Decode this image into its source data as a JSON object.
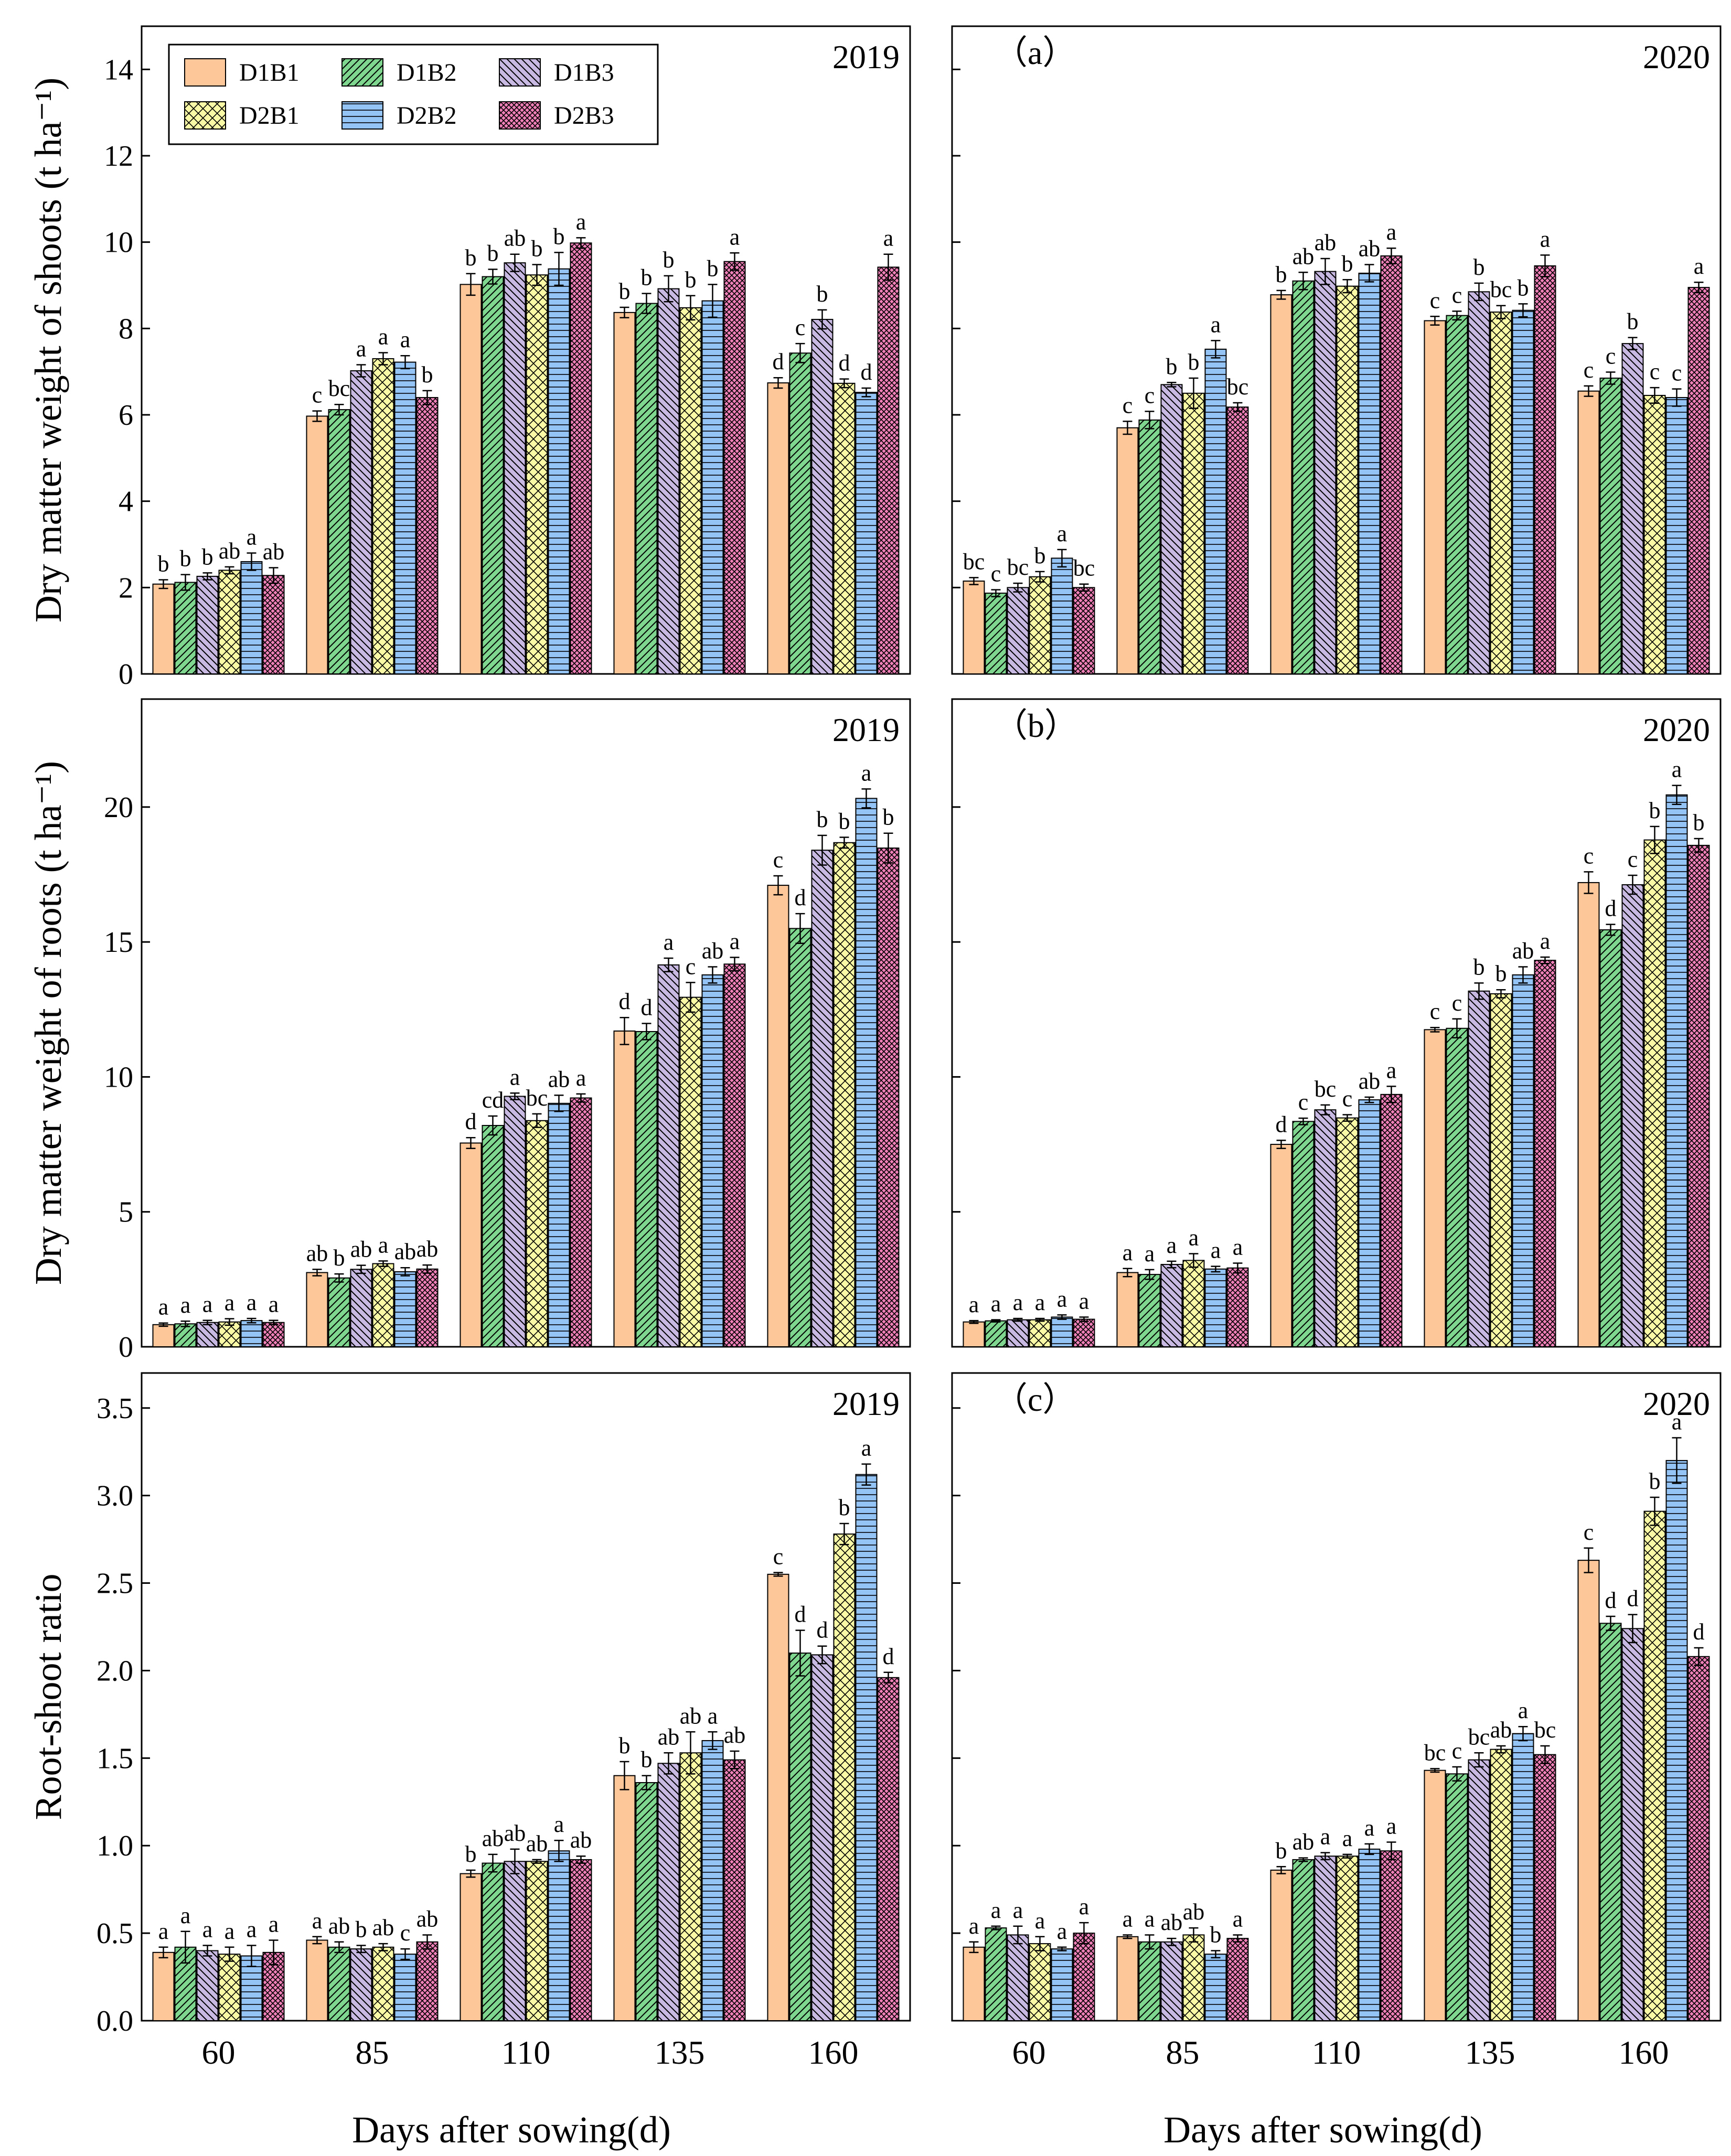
{
  "legend": [
    {
      "label": "D1B1",
      "color": "#FDC79A",
      "pattern": "none"
    },
    {
      "label": "D1B2",
      "color": "#7ED68F",
      "pattern": "diag-right"
    },
    {
      "label": "D1B3",
      "color": "#C8B9E2",
      "pattern": "diag-left"
    },
    {
      "label": "D2B1",
      "color": "#FAFAA6",
      "pattern": "cross"
    },
    {
      "label": "D2B2",
      "color": "#93C4F5",
      "pattern": "horizontal"
    },
    {
      "label": "D2B3",
      "color": "#F080B8",
      "pattern": "dense-cross"
    }
  ],
  "x_axis_title": "Days after sowing(d)",
  "chart_data": [
    {
      "type": "bar",
      "row": 0,
      "col": 0,
      "year": "2019",
      "panel_letter": "",
      "ylabel": "Dry matter weight of shoots (t ha⁻¹)",
      "ylim": [
        0,
        15
      ],
      "yticks": [
        "0",
        "2",
        "4",
        "6",
        "8",
        "10",
        "12",
        "14"
      ],
      "ytick_values": [
        0,
        2,
        4,
        6,
        8,
        10,
        12,
        14
      ],
      "categories": [
        "60",
        "85",
        "110",
        "135",
        "160"
      ],
      "series": [
        {
          "name": "D1B1",
          "values": [
            2.08,
            5.97,
            9.02,
            8.37,
            6.74
          ],
          "errors": [
            0.1,
            0.12,
            0.25,
            0.12,
            0.12
          ],
          "letters": [
            "b",
            "c",
            "b",
            "b",
            "d"
          ]
        },
        {
          "name": "D1B2",
          "values": [
            2.12,
            6.12,
            9.2,
            8.58,
            7.43
          ],
          "errors": [
            0.18,
            0.12,
            0.17,
            0.23,
            0.22
          ],
          "letters": [
            "b",
            "bc",
            "b",
            "b",
            "c"
          ]
        },
        {
          "name": "D1B3",
          "values": [
            2.26,
            7.02,
            9.52,
            8.92,
            8.21
          ],
          "errors": [
            0.08,
            0.14,
            0.2,
            0.3,
            0.22
          ],
          "letters": [
            "b",
            "a",
            "ab",
            "b",
            "b"
          ]
        },
        {
          "name": "D2B1",
          "values": [
            2.4,
            7.3,
            9.24,
            8.48,
            6.73
          ],
          "errors": [
            0.08,
            0.14,
            0.24,
            0.28,
            0.1
          ],
          "letters": [
            "ab",
            "a",
            "b",
            "b",
            "d"
          ]
        },
        {
          "name": "D2B2",
          "values": [
            2.6,
            7.22,
            9.38,
            8.64,
            6.52
          ],
          "errors": [
            0.2,
            0.15,
            0.38,
            0.38,
            0.1
          ],
          "letters": [
            "a",
            "a",
            "b",
            "b",
            "d"
          ]
        },
        {
          "name": "D2B3",
          "values": [
            2.28,
            6.4,
            9.98,
            9.55,
            9.42
          ],
          "errors": [
            0.18,
            0.16,
            0.12,
            0.2,
            0.3
          ],
          "letters": [
            "ab",
            "b",
            "a",
            "a",
            "a"
          ]
        }
      ]
    },
    {
      "type": "bar",
      "row": 0,
      "col": 1,
      "year": "2020",
      "panel_letter": "（a）",
      "ylabel": "",
      "ylim": [
        0,
        15
      ],
      "yticks": [
        "0",
        "2",
        "4",
        "6",
        "8",
        "10",
        "12",
        "14"
      ],
      "ytick_values": [
        0,
        2,
        4,
        6,
        8,
        10,
        12,
        14
      ],
      "categories": [
        "60",
        "85",
        "110",
        "135",
        "160"
      ],
      "series": [
        {
          "name": "D1B1",
          "values": [
            2.15,
            5.7,
            8.78,
            8.18,
            6.55
          ],
          "errors": [
            0.08,
            0.15,
            0.1,
            0.1,
            0.12
          ],
          "letters": [
            "bc",
            "c",
            "b",
            "c",
            "c"
          ]
        },
        {
          "name": "D1B2",
          "values": [
            1.87,
            5.88,
            9.1,
            8.3,
            6.85
          ],
          "errors": [
            0.08,
            0.2,
            0.2,
            0.1,
            0.14
          ],
          "letters": [
            "c",
            "c",
            "ab",
            "c",
            "c"
          ]
        },
        {
          "name": "D1B3",
          "values": [
            2.0,
            6.7,
            9.32,
            8.85,
            7.65
          ],
          "errors": [
            0.1,
            0.05,
            0.3,
            0.2,
            0.14
          ],
          "letters": [
            "bc",
            "b",
            "ab",
            "b",
            "b"
          ]
        },
        {
          "name": "D2B1",
          "values": [
            2.25,
            6.5,
            8.98,
            8.38,
            6.45
          ],
          "errors": [
            0.12,
            0.35,
            0.15,
            0.15,
            0.18
          ],
          "letters": [
            "b",
            "b",
            "b",
            "bc",
            "c"
          ]
        },
        {
          "name": "D2B2",
          "values": [
            2.68,
            7.52,
            9.28,
            8.42,
            6.4
          ],
          "errors": [
            0.2,
            0.2,
            0.2,
            0.15,
            0.2
          ],
          "letters": [
            "a",
            "a",
            "ab",
            "b",
            "c"
          ]
        },
        {
          "name": "D2B3",
          "values": [
            2.0,
            6.18,
            9.68,
            9.45,
            8.95
          ],
          "errors": [
            0.08,
            0.1,
            0.18,
            0.25,
            0.12
          ],
          "letters": [
            "bc",
            "bc",
            "a",
            "a",
            "a"
          ]
        }
      ]
    },
    {
      "type": "bar",
      "row": 1,
      "col": 0,
      "year": "2019",
      "panel_letter": "",
      "ylabel": "Dry matter weight of roots (t ha⁻¹)",
      "ylim": [
        0,
        24
      ],
      "yticks": [
        "0",
        "5",
        "10",
        "15",
        "20"
      ],
      "ytick_values": [
        0,
        5,
        10,
        15,
        20
      ],
      "categories": [
        "60",
        "85",
        "110",
        "135",
        "160"
      ],
      "series": [
        {
          "name": "D1B1",
          "values": [
            0.82,
            2.75,
            7.55,
            11.7,
            17.1
          ],
          "errors": [
            0.06,
            0.12,
            0.2,
            0.5,
            0.35
          ],
          "letters": [
            "a",
            "ab",
            "d",
            "d",
            "c"
          ]
        },
        {
          "name": "D1B2",
          "values": [
            0.85,
            2.55,
            8.2,
            11.68,
            15.5
          ],
          "errors": [
            0.1,
            0.15,
            0.35,
            0.3,
            0.55
          ],
          "letters": [
            "a",
            "b",
            "cd",
            "d",
            "d"
          ]
        },
        {
          "name": "D1B3",
          "values": [
            0.9,
            2.87,
            9.28,
            14.15,
            18.4
          ],
          "errors": [
            0.08,
            0.15,
            0.12,
            0.25,
            0.55
          ],
          "letters": [
            "a",
            "ab",
            "a",
            "a",
            "b"
          ]
        },
        {
          "name": "D2B1",
          "values": [
            0.92,
            3.08,
            8.38,
            12.95,
            18.68
          ],
          "errors": [
            0.12,
            0.1,
            0.25,
            0.55,
            0.2
          ],
          "letters": [
            "a",
            "a",
            "bc",
            "c",
            "b"
          ]
        },
        {
          "name": "D2B2",
          "values": [
            0.97,
            2.78,
            9.02,
            13.78,
            20.32
          ],
          "errors": [
            0.08,
            0.15,
            0.3,
            0.3,
            0.35
          ],
          "letters": [
            "a",
            "ab",
            "ab",
            "ab",
            "a"
          ]
        },
        {
          "name": "D2B3",
          "values": [
            0.9,
            2.88,
            9.22,
            14.18,
            18.48
          ],
          "errors": [
            0.08,
            0.15,
            0.15,
            0.25,
            0.55
          ],
          "letters": [
            "a",
            "ab",
            "a",
            "a",
            "b"
          ]
        }
      ]
    },
    {
      "type": "bar",
      "row": 1,
      "col": 1,
      "year": "2020",
      "panel_letter": "（b）",
      "ylabel": "",
      "ylim": [
        0,
        24
      ],
      "yticks": [
        "0",
        "5",
        "10",
        "15",
        "20"
      ],
      "ytick_values": [
        0,
        5,
        10,
        15,
        20
      ],
      "categories": [
        "60",
        "85",
        "110",
        "135",
        "160"
      ],
      "series": [
        {
          "name": "D1B1",
          "values": [
            0.92,
            2.75,
            7.5,
            11.75,
            17.2
          ],
          "errors": [
            0.05,
            0.15,
            0.15,
            0.08,
            0.4
          ],
          "letters": [
            "a",
            "a",
            "d",
            "c",
            "c"
          ]
        },
        {
          "name": "D1B2",
          "values": [
            0.96,
            2.68,
            8.35,
            11.8,
            15.45
          ],
          "errors": [
            0.04,
            0.18,
            0.12,
            0.35,
            0.2
          ],
          "letters": [
            "a",
            "a",
            "c",
            "c",
            "d"
          ]
        },
        {
          "name": "D1B3",
          "values": [
            1.0,
            3.05,
            8.78,
            13.18,
            17.12
          ],
          "errors": [
            0.05,
            0.12,
            0.18,
            0.3,
            0.35
          ],
          "letters": [
            "a",
            "a",
            "bc",
            "b",
            "c"
          ]
        },
        {
          "name": "D2B1",
          "values": [
            1.0,
            3.2,
            8.48,
            13.08,
            18.78
          ],
          "errors": [
            0.05,
            0.25,
            0.12,
            0.15,
            0.5
          ],
          "letters": [
            "a",
            "a",
            "c",
            "b",
            "b"
          ]
        },
        {
          "name": "D2B2",
          "values": [
            1.1,
            2.88,
            9.15,
            13.78,
            20.45
          ],
          "errors": [
            0.08,
            0.1,
            0.1,
            0.3,
            0.35
          ],
          "letters": [
            "a",
            "a",
            "ab",
            "ab",
            "a"
          ]
        },
        {
          "name": "D2B3",
          "values": [
            1.02,
            2.92,
            9.35,
            14.32,
            18.58
          ],
          "errors": [
            0.08,
            0.18,
            0.3,
            0.12,
            0.25
          ],
          "letters": [
            "a",
            "a",
            "a",
            "a",
            "b"
          ]
        }
      ]
    },
    {
      "type": "bar",
      "row": 2,
      "col": 0,
      "year": "2019",
      "panel_letter": "",
      "ylabel": "Root-shoot ratio",
      "ylim": [
        0,
        3.7
      ],
      "yticks": [
        "0.0",
        "0.5",
        "1.0",
        "1.5",
        "2.0",
        "2.5",
        "3.0",
        "3.5"
      ],
      "ytick_values": [
        0,
        0.5,
        1.0,
        1.5,
        2.0,
        2.5,
        3.0,
        3.5
      ],
      "categories": [
        "60",
        "85",
        "110",
        "135",
        "160"
      ],
      "series": [
        {
          "name": "D1B1",
          "values": [
            0.39,
            0.46,
            0.84,
            1.4,
            2.55
          ],
          "errors": [
            0.03,
            0.02,
            0.02,
            0.08,
            0.01
          ],
          "letters": [
            "a",
            "a",
            "b",
            "b",
            "c"
          ]
        },
        {
          "name": "D1B2",
          "values": [
            0.42,
            0.42,
            0.9,
            1.36,
            2.1
          ],
          "errors": [
            0.09,
            0.03,
            0.05,
            0.04,
            0.13
          ],
          "letters": [
            "a",
            "ab",
            "ab",
            "b",
            "d"
          ]
        },
        {
          "name": "D1B3",
          "values": [
            0.4,
            0.41,
            0.91,
            1.47,
            2.09
          ],
          "errors": [
            0.03,
            0.02,
            0.07,
            0.06,
            0.05
          ],
          "letters": [
            "a",
            "b",
            "ab",
            "ab",
            "d"
          ]
        },
        {
          "name": "D2B1",
          "values": [
            0.38,
            0.42,
            0.91,
            1.53,
            2.78
          ],
          "errors": [
            0.04,
            0.02,
            0.01,
            0.12,
            0.06
          ],
          "letters": [
            "a",
            "ab",
            "ab",
            "ab",
            "b"
          ]
        },
        {
          "name": "D2B2",
          "values": [
            0.37,
            0.38,
            0.97,
            1.6,
            3.12
          ],
          "errors": [
            0.06,
            0.03,
            0.06,
            0.05,
            0.06
          ],
          "letters": [
            "a",
            "c",
            "a",
            "a",
            "a"
          ]
        },
        {
          "name": "D2B3",
          "values": [
            0.39,
            0.45,
            0.92,
            1.49,
            1.96
          ],
          "errors": [
            0.07,
            0.04,
            0.02,
            0.05,
            0.03
          ],
          "letters": [
            "a",
            "ab",
            "ab",
            "ab",
            "d"
          ]
        }
      ]
    },
    {
      "type": "bar",
      "row": 2,
      "col": 1,
      "year": "2020",
      "panel_letter": "（c）",
      "ylabel": "",
      "ylim": [
        0,
        3.7
      ],
      "yticks": [
        "0.0",
        "0.5",
        "1.0",
        "1.5",
        "2.0",
        "2.5",
        "3.0",
        "3.5"
      ],
      "ytick_values": [
        0,
        0.5,
        1.0,
        1.5,
        2.0,
        2.5,
        3.0,
        3.5
      ],
      "categories": [
        "60",
        "85",
        "110",
        "135",
        "160"
      ],
      "series": [
        {
          "name": "D1B1",
          "values": [
            0.42,
            0.48,
            0.86,
            1.43,
            2.63
          ],
          "errors": [
            0.03,
            0.01,
            0.02,
            0.01,
            0.07
          ],
          "letters": [
            "a",
            "a",
            "b",
            "bc",
            "c"
          ]
        },
        {
          "name": "D1B2",
          "values": [
            0.53,
            0.45,
            0.92,
            1.41,
            2.27
          ],
          "errors": [
            0.01,
            0.04,
            0.01,
            0.04,
            0.04
          ],
          "letters": [
            "a",
            "a",
            "ab",
            "c",
            "d"
          ]
        },
        {
          "name": "D1B3",
          "values": [
            0.49,
            0.45,
            0.94,
            1.49,
            2.24
          ],
          "errors": [
            0.05,
            0.02,
            0.02,
            0.04,
            0.08
          ],
          "letters": [
            "a",
            "ab",
            "a",
            "bc",
            "d"
          ]
        },
        {
          "name": "D2B1",
          "values": [
            0.44,
            0.49,
            0.94,
            1.55,
            2.91
          ],
          "errors": [
            0.04,
            0.04,
            0.01,
            0.02,
            0.08
          ],
          "letters": [
            "a",
            "ab",
            "a",
            "ab",
            "b"
          ]
        },
        {
          "name": "D2B2",
          "values": [
            0.41,
            0.38,
            0.98,
            1.64,
            3.2
          ],
          "errors": [
            0.01,
            0.02,
            0.03,
            0.04,
            0.13
          ],
          "letters": [
            "a",
            "b",
            "a",
            "a",
            "a"
          ]
        },
        {
          "name": "D2B3",
          "values": [
            0.5,
            0.47,
            0.97,
            1.52,
            2.08
          ],
          "errors": [
            0.06,
            0.02,
            0.05,
            0.05,
            0.05
          ],
          "letters": [
            "a",
            "a",
            "a",
            "bc",
            "d"
          ]
        }
      ]
    }
  ]
}
